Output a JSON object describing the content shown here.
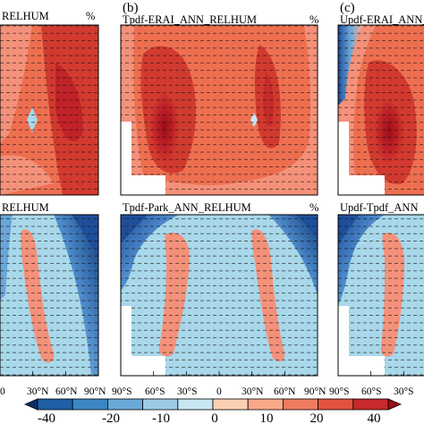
{
  "chart_data": [
    {
      "type": "heatmap",
      "panel": "a-top",
      "title": "RELHUM",
      "unit": "%",
      "xticks": [
        "30°N",
        "60°N",
        "90°N"
      ]
    },
    {
      "type": "heatmap",
      "panel": "b",
      "letter": "(b)",
      "title": "Tpdf-ERAI_ANN_RELHUM",
      "unit": "%"
    },
    {
      "type": "heatmap",
      "panel": "c",
      "letter": "(c)",
      "title": "Updf-ERAI_ANN_RELHUM",
      "unit": "%"
    },
    {
      "type": "heatmap",
      "panel": "a-bottom",
      "title": "RELHUM",
      "xticks": [
        "0",
        "30°N",
        "60°N",
        "90°N"
      ]
    },
    {
      "type": "heatmap",
      "panel": "b-bottom",
      "title": "Tpdf-Park_ANN_RELHUM",
      "unit": "%",
      "xticks": [
        "90°S",
        "60°S",
        "30°S",
        "0",
        "30°N",
        "60°N",
        "90°N"
      ]
    },
    {
      "type": "heatmap",
      "panel": "c-bottom",
      "title": "Updf-Tpdf_ANN",
      "xticks": [
        "90°S",
        "60°S",
        "30°S"
      ]
    }
  ],
  "colorbar": {
    "labels": [
      "-40",
      "-20",
      "-10",
      "0",
      "10",
      "20",
      "40"
    ],
    "colors": [
      "#08306b",
      "#1f5fa6",
      "#3c86c4",
      "#6aa8d8",
      "#9ccbe6",
      "#c8e5f2",
      "#fcd0b4",
      "#f9a98a",
      "#f07c5f",
      "#e2523f",
      "#c72a2a",
      "#9b0d18"
    ]
  },
  "colors": {
    "deep_red": "#a3101c",
    "red": "#d23a2f",
    "orange_red": "#ee6f50",
    "salmon": "#f4917a",
    "light_blue": "#a8d8ea",
    "mid_blue": "#6aa6d8",
    "dark_blue": "#1f4e9a"
  }
}
